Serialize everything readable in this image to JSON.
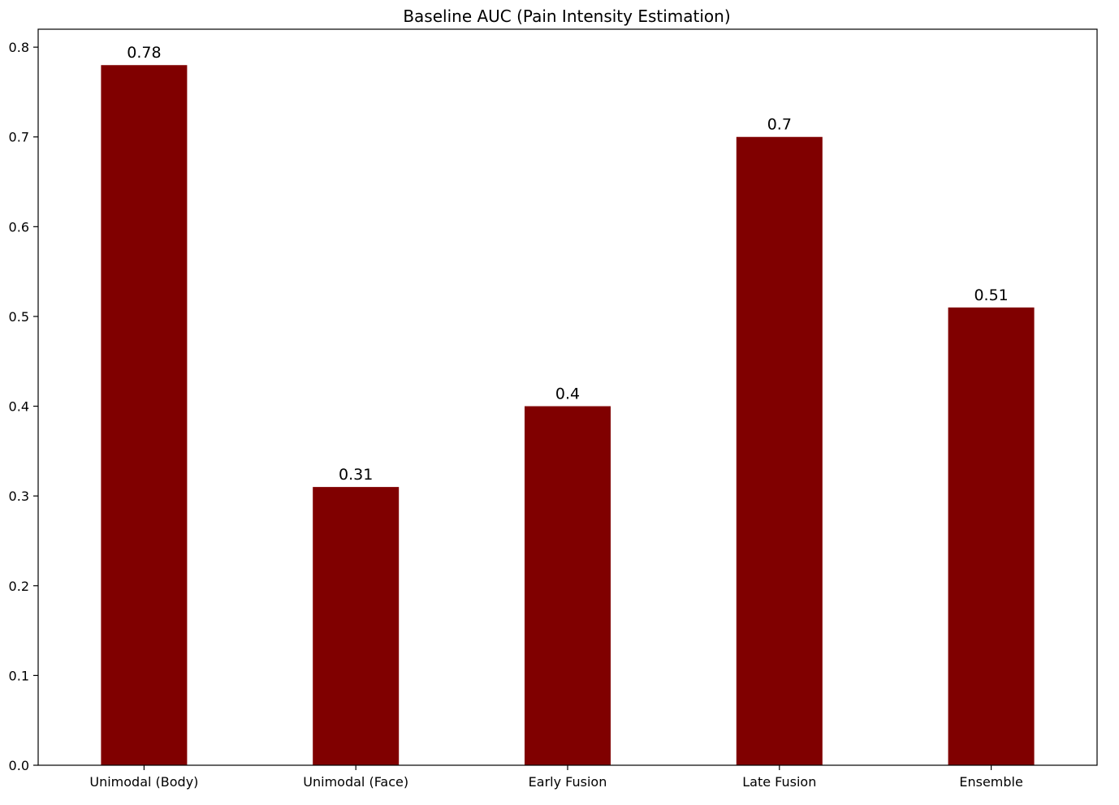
{
  "chart_data": {
    "type": "bar",
    "title": "Baseline AUC (Pain Intensity Estimation)",
    "xlabel": "",
    "ylabel": "",
    "categories": [
      "Unimodal (Body)",
      "Unimodal (Face)",
      "Early Fusion",
      "Late Fusion",
      "Ensemble"
    ],
    "values": [
      0.78,
      0.31,
      0.4,
      0.7,
      0.51
    ],
    "data_labels": [
      "0.78",
      "0.31",
      "0.4",
      "0.7",
      "0.51"
    ],
    "ylim": [
      0,
      0.82
    ],
    "yticks": [
      0.0,
      0.1,
      0.2,
      0.3,
      0.4,
      0.5,
      0.6,
      0.7,
      0.8
    ],
    "ytick_labels": [
      "0.0",
      "0.1",
      "0.2",
      "0.3",
      "0.4",
      "0.5",
      "0.6",
      "0.7",
      "0.8"
    ],
    "grid": false,
    "legend": "none",
    "bar_color": "#800000"
  }
}
